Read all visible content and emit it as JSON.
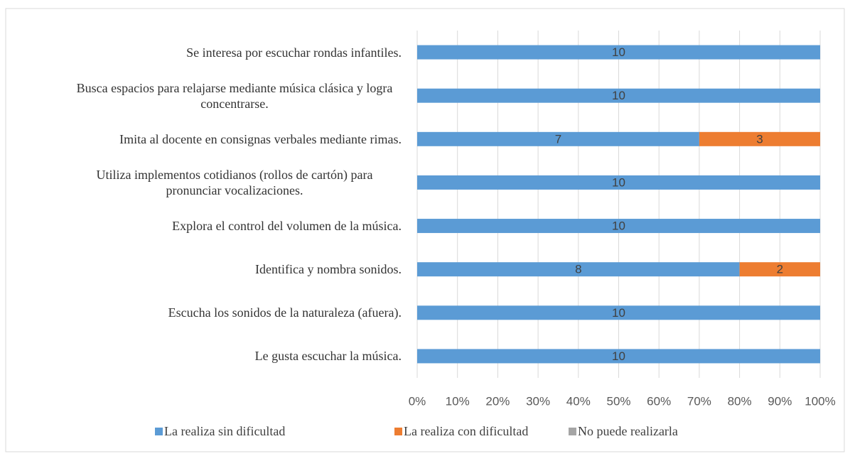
{
  "chart_data": {
    "type": "stacked_barh",
    "categories": [
      "Se interesa por  escuchar rondas infantiles.",
      "Busca espacios para relajarse mediante música clásica y logra concentrarse.",
      "Imita al docente en consignas verbales mediante rimas.",
      "Utiliza implementos cotidianos (rollos de cartón) para pronunciar vocalizaciones.",
      "Explora el control del volumen de la música.",
      "Identifica y nombra sonidos.",
      "Escucha los sonidos de la naturaleza (afuera).",
      "Le gusta escuchar la música."
    ],
    "series": [
      {
        "name": "La realiza sin dificultad",
        "color": "#5b9bd5",
        "values": [
          10,
          10,
          7,
          10,
          10,
          8,
          10,
          10
        ]
      },
      {
        "name": "La realiza con  dificultad",
        "color": "#ed7d31",
        "values": [
          0,
          0,
          3,
          0,
          0,
          2,
          0,
          0
        ]
      },
      {
        "name": "No puede realizarla",
        "color": "#a5a5a5",
        "values": [
          0,
          0,
          0,
          0,
          0,
          0,
          0,
          0
        ]
      }
    ],
    "xlim": [
      0,
      10
    ],
    "xticks": [
      {
        "value": 0,
        "label": "0%"
      },
      {
        "value": 1,
        "label": "10%"
      },
      {
        "value": 2,
        "label": "20%"
      },
      {
        "value": 3,
        "label": "30%"
      },
      {
        "value": 4,
        "label": "40%"
      },
      {
        "value": 5,
        "label": "50%"
      },
      {
        "value": 6,
        "label": "60%"
      },
      {
        "value": 7,
        "label": "70%"
      },
      {
        "value": 8,
        "label": "80%"
      },
      {
        "value": 9,
        "label": "90%"
      },
      {
        "value": 10,
        "label": "100%"
      }
    ],
    "grid": true,
    "legend": "bottom"
  }
}
